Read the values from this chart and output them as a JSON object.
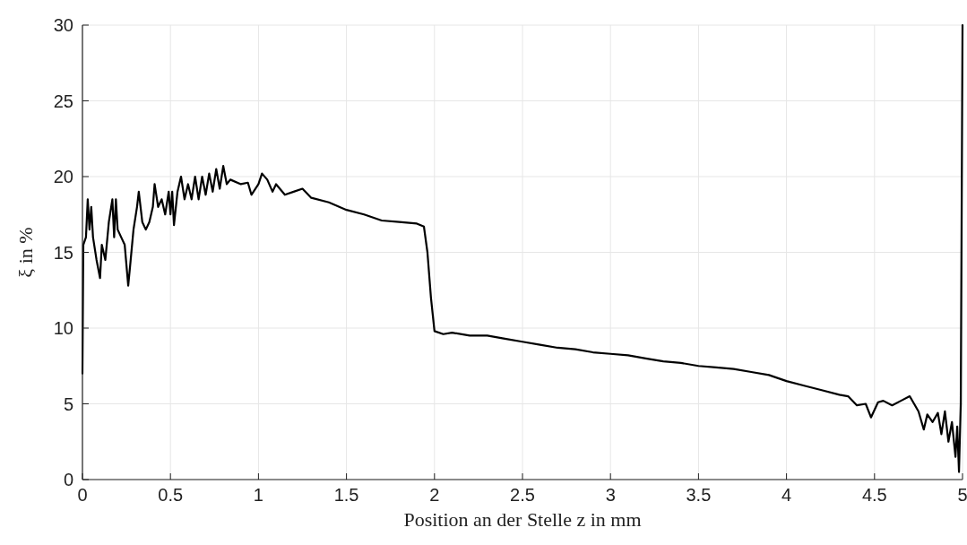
{
  "chart_data": {
    "type": "line",
    "xlabel": "Position an der Stelle z in mm",
    "ylabel": "ξ in %",
    "xlim": [
      0,
      5
    ],
    "ylim": [
      0,
      30
    ],
    "xticks": [
      0,
      0.5,
      1,
      1.5,
      2,
      2.5,
      3,
      3.5,
      4,
      4.5,
      5
    ],
    "yticks": [
      0,
      5,
      10,
      15,
      20,
      25,
      30
    ],
    "grid": true,
    "series": [
      {
        "color": "#000000",
        "x": [
          0,
          0.005,
          0.02,
          0.03,
          0.04,
          0.05,
          0.06,
          0.08,
          0.1,
          0.11,
          0.13,
          0.15,
          0.17,
          0.18,
          0.19,
          0.2,
          0.22,
          0.24,
          0.26,
          0.27,
          0.29,
          0.31,
          0.32,
          0.34,
          0.36,
          0.38,
          0.4,
          0.41,
          0.43,
          0.45,
          0.47,
          0.49,
          0.5,
          0.51,
          0.52,
          0.54,
          0.56,
          0.58,
          0.6,
          0.62,
          0.64,
          0.66,
          0.68,
          0.7,
          0.72,
          0.74,
          0.76,
          0.78,
          0.8,
          0.82,
          0.84,
          0.9,
          0.94,
          0.96,
          1.0,
          1.02,
          1.05,
          1.08,
          1.1,
          1.15,
          1.2,
          1.25,
          1.3,
          1.4,
          1.5,
          1.6,
          1.7,
          1.8,
          1.9,
          1.94,
          1.96,
          1.98,
          2.0,
          2.05,
          2.1,
          2.2,
          2.3,
          2.4,
          2.5,
          2.6,
          2.7,
          2.8,
          2.9,
          3.0,
          3.1,
          3.2,
          3.3,
          3.4,
          3.5,
          3.6,
          3.7,
          3.8,
          3.9,
          4.0,
          4.1,
          4.2,
          4.3,
          4.35,
          4.4,
          4.45,
          4.48,
          4.52,
          4.55,
          4.6,
          4.65,
          4.7,
          4.75,
          4.78,
          4.8,
          4.83,
          4.86,
          4.88,
          4.9,
          4.92,
          4.94,
          4.96,
          4.97,
          4.98,
          4.99,
          5.0
        ],
        "values": [
          7,
          15.5,
          16,
          18.5,
          16.5,
          18,
          16,
          14.5,
          13.3,
          15.5,
          14.5,
          17,
          18.5,
          16,
          18.5,
          16.5,
          16,
          15.5,
          12.8,
          14,
          16.5,
          18,
          19,
          17,
          16.5,
          17,
          18,
          19.5,
          18,
          18.5,
          17.5,
          19,
          17.5,
          19,
          16.8,
          19,
          20,
          18.5,
          19.5,
          18.5,
          20,
          18.5,
          20,
          18.8,
          20.2,
          19,
          20.5,
          19.2,
          20.7,
          19.5,
          19.8,
          19.5,
          19.6,
          18.8,
          19.5,
          20.2,
          19.8,
          19,
          19.5,
          18.8,
          19,
          19.2,
          18.6,
          18.3,
          17.8,
          17.5,
          17.1,
          17,
          16.9,
          16.7,
          15,
          12,
          9.8,
          9.6,
          9.7,
          9.5,
          9.5,
          9.3,
          9.1,
          8.9,
          8.7,
          8.6,
          8.4,
          8.3,
          8.2,
          8,
          7.8,
          7.7,
          7.5,
          7.4,
          7.3,
          7.1,
          6.9,
          6.5,
          6.2,
          5.9,
          5.6,
          5.5,
          4.9,
          5,
          4.1,
          5.1,
          5.2,
          4.9,
          5.2,
          5.5,
          4.5,
          3.3,
          4.3,
          3.8,
          4.4,
          3,
          4.5,
          2.5,
          3.8,
          1.5,
          3.5,
          0.5,
          5,
          30
        ]
      }
    ]
  }
}
